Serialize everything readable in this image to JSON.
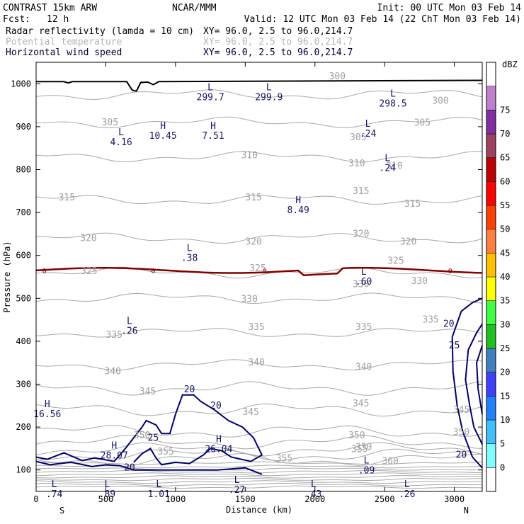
{
  "header": {
    "model": "CONTRAST 15km ARW",
    "org": "NCAR/MMM",
    "init": "Init: 00 UTC Mon 03 Feb 14",
    "fcst_label": "Fcst:",
    "fcst_value": "12 h",
    "valid": "Valid: 12 UTC Mon 03 Feb 14 (22 ChT Mon 03 Feb 14)",
    "fields": [
      {
        "name": "Radar reflectivity (lamda = 10 cm)",
        "xy": "XY=  96.0,  2.5 to  96.0,214.7",
        "color": "#000000"
      },
      {
        "name": "Potential temperature",
        "xy": "XY=  96.0,  2.5 to  96.0,214.7",
        "color": "#b4b4b4"
      },
      {
        "name": "Horizontal wind speed",
        "xy": "XY=  96.0,  2.5 to  96.0,214.7",
        "color": "#000033"
      }
    ]
  },
  "chart_data": {
    "type": "cross-section contour",
    "xlabel": "Distance (km)",
    "ylabel": "Pressure (hPa)",
    "xlim": [
      0,
      3200
    ],
    "ylim": [
      1050,
      50
    ],
    "x_ticks": [
      "0",
      "500",
      "1000",
      "1500",
      "2000",
      "2500",
      "3000"
    ],
    "y_ticks": [
      "100",
      "200",
      "300",
      "400",
      "500",
      "600",
      "700",
      "800",
      "900",
      "1000"
    ],
    "x_end_labels": {
      "left": "S",
      "right": "N"
    },
    "theta_labels": [
      {
        "text": "360",
        "x": 2540,
        "p": 120
      },
      {
        "text": "355",
        "x": 1780,
        "p": 127
      },
      {
        "text": "355",
        "x": 930,
        "p": 142
      },
      {
        "text": "350",
        "x": 2350,
        "p": 153
      },
      {
        "text": "350",
        "x": 3050,
        "p": 188
      },
      {
        "text": "355",
        "x": 2320,
        "p": 148
      },
      {
        "text": "350",
        "x": 2300,
        "p": 180
      },
      {
        "text": "350",
        "x": 760,
        "p": 180
      },
      {
        "text": "345",
        "x": 1540,
        "p": 235
      },
      {
        "text": "345",
        "x": 2330,
        "p": 255
      },
      {
        "text": "345",
        "x": 3050,
        "p": 240
      },
      {
        "text": "345",
        "x": 800,
        "p": 283
      },
      {
        "text": "340",
        "x": 550,
        "p": 330
      },
      {
        "text": "340",
        "x": 1580,
        "p": 350
      },
      {
        "text": "340",
        "x": 2350,
        "p": 340
      },
      {
        "text": "335",
        "x": 560,
        "p": 415
      },
      {
        "text": "335",
        "x": 1580,
        "p": 433
      },
      {
        "text": "335",
        "x": 2350,
        "p": 433
      },
      {
        "text": "335",
        "x": 2830,
        "p": 450
      },
      {
        "text": "330",
        "x": 1530,
        "p": 498
      },
      {
        "text": "330",
        "x": 2330,
        "p": 533
      },
      {
        "text": "330",
        "x": 2750,
        "p": 540
      },
      {
        "text": "325",
        "x": 380,
        "p": 563
      },
      {
        "text": "325",
        "x": 1590,
        "p": 570
      },
      {
        "text": "325",
        "x": 2580,
        "p": 587
      },
      {
        "text": "320",
        "x": 375,
        "p": 640
      },
      {
        "text": "320",
        "x": 1560,
        "p": 632
      },
      {
        "text": "320",
        "x": 2330,
        "p": 650
      },
      {
        "text": "320",
        "x": 2670,
        "p": 632
      },
      {
        "text": "315",
        "x": 220,
        "p": 735
      },
      {
        "text": "315",
        "x": 1560,
        "p": 735
      },
      {
        "text": "315",
        "x": 2330,
        "p": 750
      },
      {
        "text": "315",
        "x": 2700,
        "p": 720
      },
      {
        "text": "310",
        "x": 1530,
        "p": 833
      },
      {
        "text": "310",
        "x": 2300,
        "p": 814
      },
      {
        "text": "310",
        "x": 2570,
        "p": 808
      },
      {
        "text": "305",
        "x": 530,
        "p": 910
      },
      {
        "text": "305",
        "x": 2310,
        "p": 875
      },
      {
        "text": "305",
        "x": 2770,
        "p": 909
      },
      {
        "text": "300",
        "x": 2900,
        "p": 960
      },
      {
        "text": "300",
        "x": 2160,
        "p": 1017
      }
    ],
    "wind_labels": [
      {
        "text": "20",
        "x": 670,
        "p": 105
      },
      {
        "text": "25",
        "x": 840,
        "p": 175
      },
      {
        "text": "20",
        "x": 1290,
        "p": 250
      },
      {
        "text": "20",
        "x": 1100,
        "p": 288
      },
      {
        "text": "20",
        "x": 3050,
        "p": 135
      },
      {
        "text": "25",
        "x": 3000,
        "p": 390
      },
      {
        "text": "20",
        "x": 2960,
        "p": 440
      }
    ],
    "extrema": [
      {
        "type": "L",
        "value": ".74",
        "x": 130,
        "p": 60
      },
      {
        "type": "L",
        "value": ".89",
        "x": 510,
        "p": 60
      },
      {
        "type": "L",
        "value": "1.01",
        "x": 880,
        "p": 60
      },
      {
        "type": "L",
        "value": ".27",
        "x": 1440,
        "p": 70
      },
      {
        "type": "L",
        "value": ".43",
        "x": 1990,
        "p": 60
      },
      {
        "type": "L",
        "value": ".26",
        "x": 2660,
        "p": 60
      },
      {
        "type": "L",
        "value": ".09",
        "x": 2370,
        "p": 115
      },
      {
        "type": "H",
        "value": "28.07",
        "x": 560,
        "p": 150
      },
      {
        "type": "H",
        "value": "26.04",
        "x": 1310,
        "p": 165
      },
      {
        "type": "H",
        "value": "16.56",
        "x": 80,
        "p": 246
      },
      {
        "type": "L",
        "value": ".26",
        "x": 670,
        "p": 440
      },
      {
        "type": "L",
        "value": ".60",
        "x": 2350,
        "p": 555
      },
      {
        "type": "L",
        "value": ".38",
        "x": 1100,
        "p": 610
      },
      {
        "type": "H",
        "value": "8.49",
        "x": 1880,
        "p": 722
      },
      {
        "type": "L",
        "value": ".24",
        "x": 2520,
        "p": 820
      },
      {
        "type": "L",
        "value": "4.16",
        "x": 610,
        "p": 880
      },
      {
        "type": "H",
        "value": "10.45",
        "x": 910,
        "p": 895
      },
      {
        "type": "H",
        "value": "7.51",
        "x": 1270,
        "p": 895
      },
      {
        "type": "L",
        "value": ".24",
        "x": 2380,
        "p": 900
      },
      {
        "type": "L",
        "value": "299.7",
        "x": 1250,
        "p": 985
      },
      {
        "type": "L",
        "value": "299.9",
        "x": 1670,
        "p": 985
      },
      {
        "type": "L",
        "value": "298.5",
        "x": 2560,
        "p": 970
      }
    ],
    "freezing_line": {
      "label": "0",
      "p_mean": 565
    },
    "colorbar": {
      "units": "dBZ",
      "levels": [
        "0",
        "5",
        "10",
        "15",
        "20",
        "25",
        "30",
        "35",
        "40",
        "45",
        "50",
        "55",
        "60",
        "65",
        "70",
        "75"
      ],
      "colors": [
        "#ffffff",
        "#80ffff",
        "#40c0ff",
        "#2080ff",
        "#4040ff",
        "#4080c0",
        "#20c020",
        "#40ff40",
        "#ffff00",
        "#ffc000",
        "#ff8040",
        "#ff4000",
        "#ff0000",
        "#c00000",
        "#a04060",
        "#8030a0",
        "#c080d0",
        "#ffffff"
      ]
    }
  }
}
